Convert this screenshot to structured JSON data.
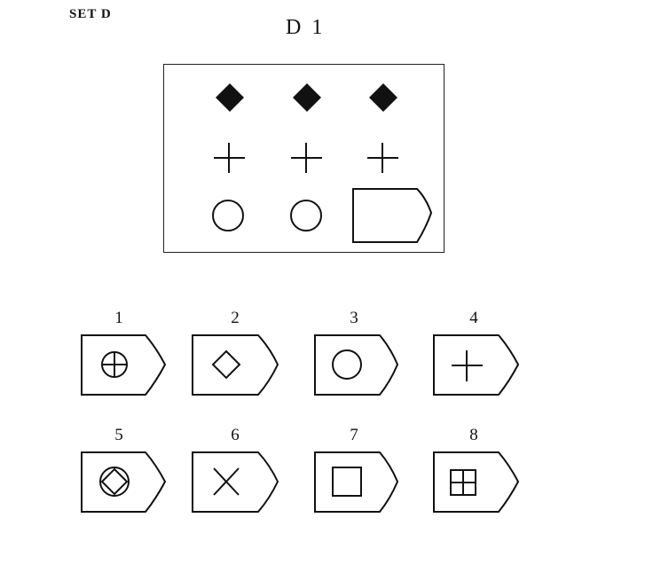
{
  "header": {
    "set_label": "SET D",
    "problem_title": "D 1"
  },
  "matrix": {
    "rows": [
      [
        "filled-diamond",
        "filled-diamond",
        "filled-diamond"
      ],
      [
        "cross",
        "cross",
        "cross"
      ],
      [
        "circle",
        "circle",
        "missing"
      ]
    ]
  },
  "options": [
    {
      "number": "1",
      "symbol": "circle-with-cross"
    },
    {
      "number": "2",
      "symbol": "diamond"
    },
    {
      "number": "3",
      "symbol": "circle"
    },
    {
      "number": "4",
      "symbol": "cross"
    },
    {
      "number": "5",
      "symbol": "circle-with-diamond"
    },
    {
      "number": "6",
      "symbol": "x-mark"
    },
    {
      "number": "7",
      "symbol": "square"
    },
    {
      "number": "8",
      "symbol": "square-with-cross"
    }
  ],
  "colors": {
    "ink": "#111111",
    "background": "#ffffff"
  }
}
